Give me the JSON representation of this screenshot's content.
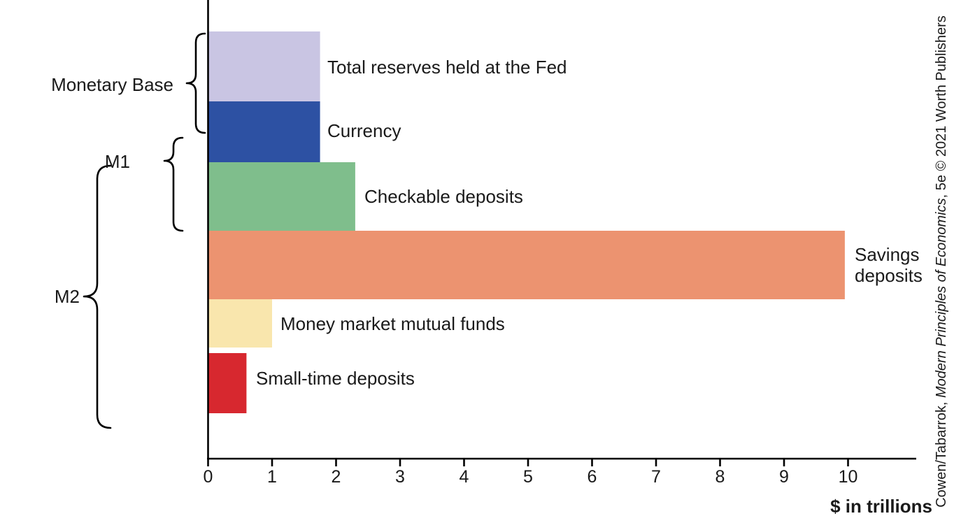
{
  "chart_data": {
    "type": "bar",
    "orientation": "horizontal",
    "title": "",
    "xlabel": "$ in trillions",
    "ylabel": "",
    "xlim": [
      0,
      11
    ],
    "x_ticks": [
      0,
      1,
      2,
      3,
      4,
      5,
      6,
      7,
      8,
      9,
      10
    ],
    "unit": "trillions of dollars",
    "bars": [
      {
        "label": "Total reserves held at the Fed",
        "value": 1.75,
        "color": "#c9c5e3"
      },
      {
        "label": "Currency",
        "value": 1.75,
        "color": "#2d51a3"
      },
      {
        "label": "Checkable deposits",
        "value": 2.3,
        "color": "#7fbe8c"
      },
      {
        "label": "Savings deposits",
        "value": 9.95,
        "color": "#ec9370",
        "label_lines": [
          "Savings",
          "deposits"
        ]
      },
      {
        "label": "Money market mutual funds",
        "value": 1.0,
        "color": "#f9e6ad"
      },
      {
        "label": "Small-time deposits",
        "value": 0.6,
        "color": "#d7282f"
      }
    ],
    "groups": [
      {
        "label": "Monetary Base",
        "includes": [
          "Total reserves held at the Fed",
          "Currency"
        ]
      },
      {
        "label": "M1",
        "includes": [
          "Currency",
          "Checkable deposits"
        ]
      },
      {
        "label": "M2",
        "includes": [
          "Currency",
          "Checkable deposits",
          "Savings deposits",
          "Money market mutual funds",
          "Small-time deposits"
        ]
      }
    ],
    "grid": false,
    "legend": "none"
  },
  "attribution": {
    "prefix": "Cowen/Tabarrok, ",
    "italic": "Modern Principles of Economics",
    "suffix": ", 5e © 2021 Worth Publishers"
  }
}
